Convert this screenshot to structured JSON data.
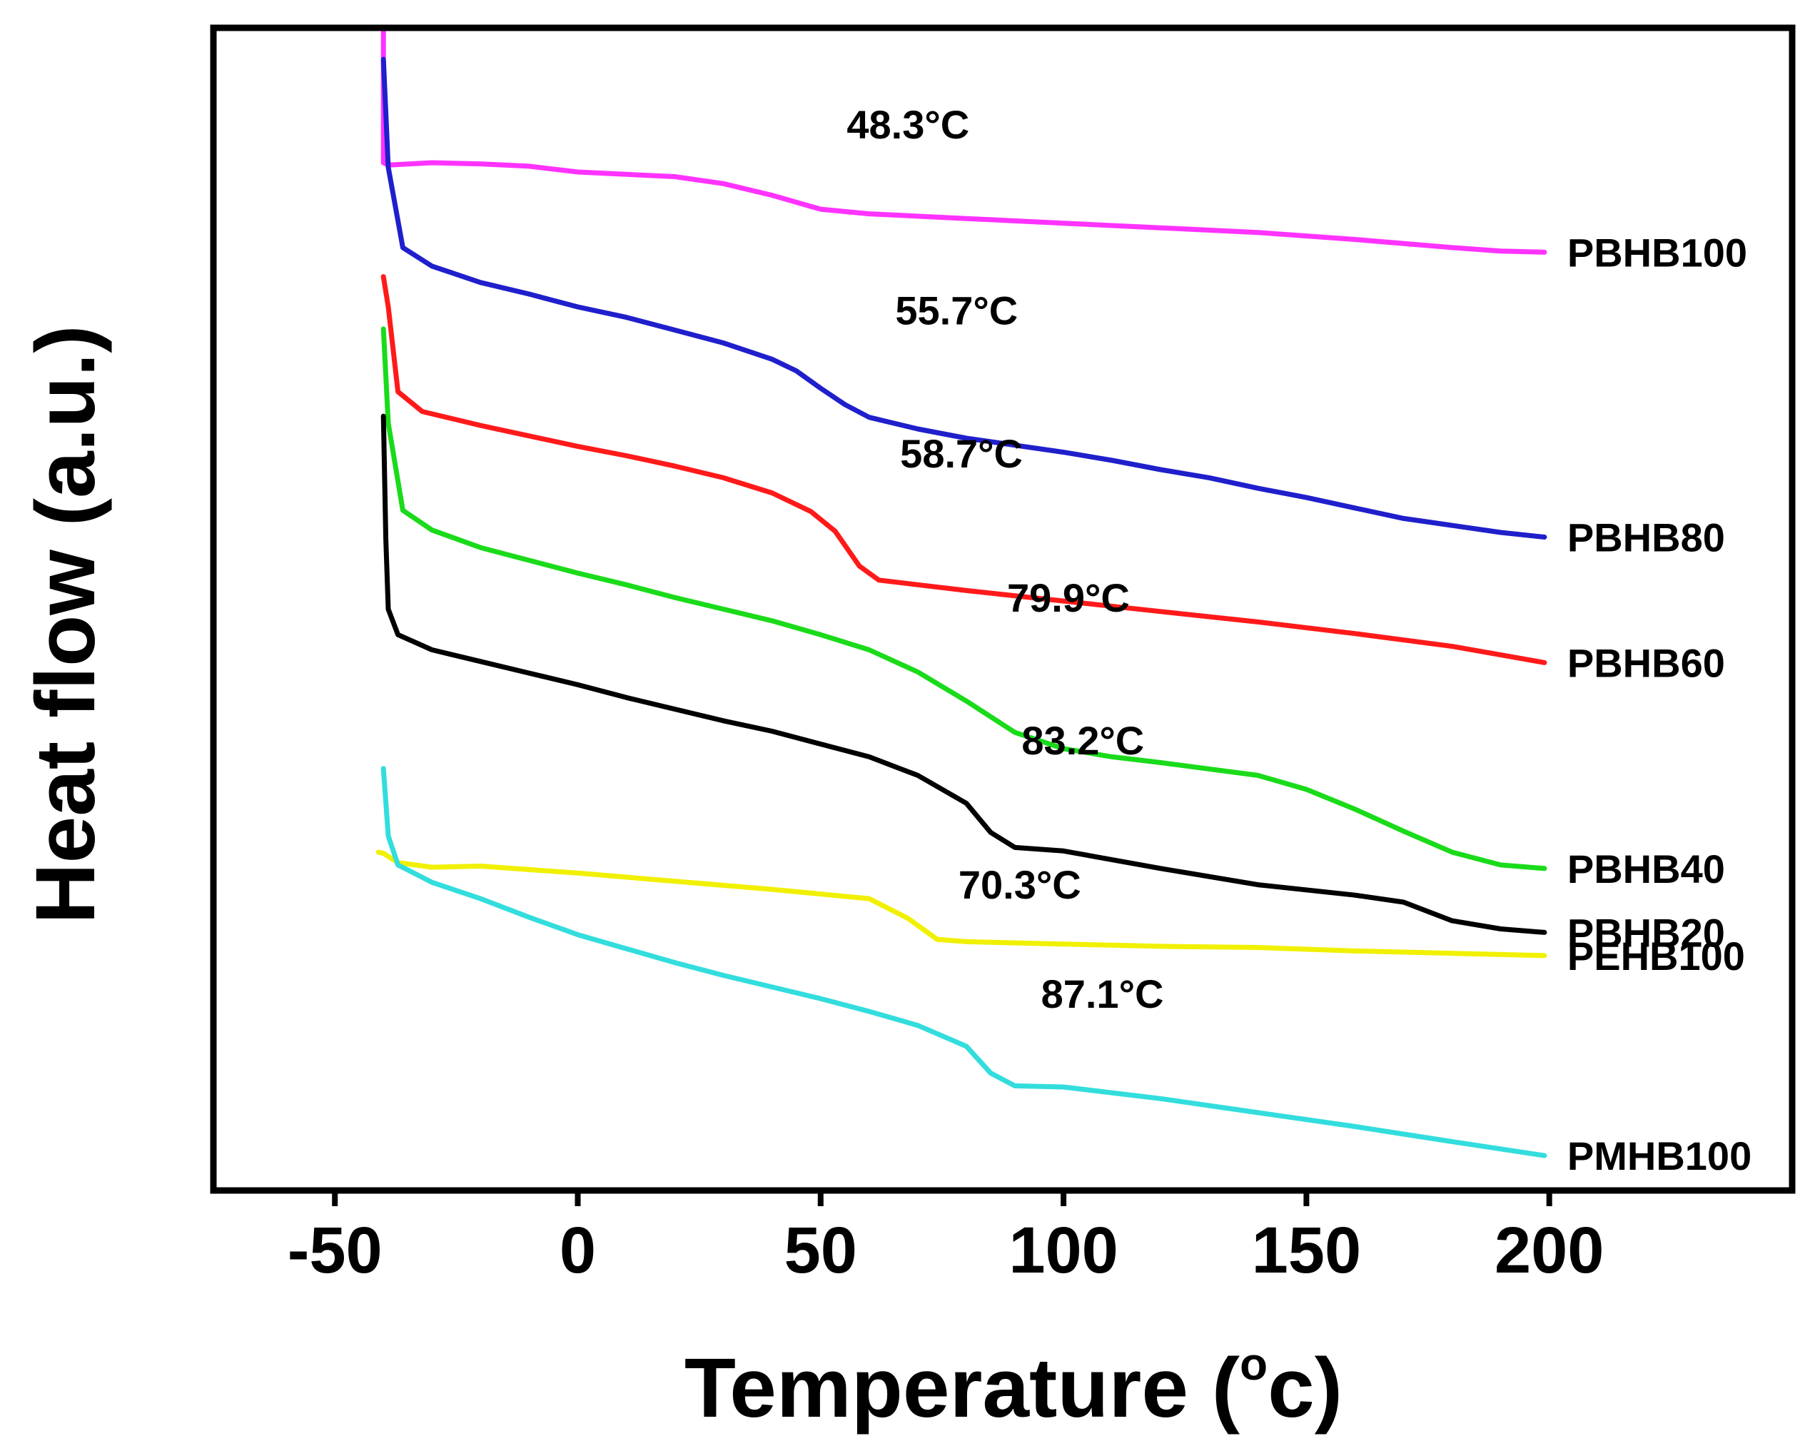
{
  "chart_data": {
    "type": "line",
    "title": "",
    "xlabel": "Temperature (",
    "xlabel_unit_degree": "o",
    "xlabel_unit": "c)",
    "ylabel": "Heat flow (a.u.)",
    "xlim": [
      -75,
      250
    ],
    "ylim": [
      0,
      100
    ],
    "xticks": [
      -50,
      0,
      50,
      100,
      150,
      200
    ],
    "xtick_labels": [
      "-50",
      "0",
      "50",
      "100",
      "150",
      "200"
    ],
    "yticks_shown": false,
    "grid": false,
    "series": [
      {
        "name": "PBHB100",
        "color": "#ff33ff",
        "annotation": "48.3°C",
        "annotation_pos": [
          68,
          90.5
        ],
        "points": [
          [
            -40,
            100
          ],
          [
            -40,
            88.4
          ],
          [
            -39,
            88.2
          ],
          [
            -30,
            88.4
          ],
          [
            -20,
            88.3
          ],
          [
            -10,
            88.1
          ],
          [
            0,
            87.6
          ],
          [
            10,
            87.4
          ],
          [
            20,
            87.2
          ],
          [
            30,
            86.6
          ],
          [
            40,
            85.6
          ],
          [
            50,
            84.4
          ],
          [
            60,
            84.0
          ],
          [
            80,
            83.6
          ],
          [
            100,
            83.2
          ],
          [
            120,
            82.8
          ],
          [
            140,
            82.4
          ],
          [
            160,
            81.8
          ],
          [
            180,
            81.1
          ],
          [
            190,
            80.8
          ],
          [
            199,
            80.7
          ]
        ]
      },
      {
        "name": "PBHB80",
        "color": "#1f1fcc",
        "annotation": "55.7°C",
        "annotation_pos": [
          78,
          74.5
        ],
        "points": [
          [
            -40,
            97.3
          ],
          [
            -39,
            88.0
          ],
          [
            -36,
            81.1
          ],
          [
            -30,
            79.5
          ],
          [
            -20,
            78.1
          ],
          [
            -10,
            77.1
          ],
          [
            0,
            76.0
          ],
          [
            10,
            75.1
          ],
          [
            20,
            74.0
          ],
          [
            30,
            72.9
          ],
          [
            40,
            71.5
          ],
          [
            45,
            70.5
          ],
          [
            50,
            69.0
          ],
          [
            55,
            67.6
          ],
          [
            60,
            66.5
          ],
          [
            70,
            65.5
          ],
          [
            80,
            64.7
          ],
          [
            90,
            64.1
          ],
          [
            100,
            63.5
          ],
          [
            110,
            62.8
          ],
          [
            120,
            62.0
          ],
          [
            130,
            61.3
          ],
          [
            140,
            60.4
          ],
          [
            150,
            59.6
          ],
          [
            160,
            58.7
          ],
          [
            170,
            57.8
          ],
          [
            180,
            57.2
          ],
          [
            190,
            56.6
          ],
          [
            199,
            56.2
          ]
        ]
      },
      {
        "name": "PBHB60",
        "color": "#ff1a1a",
        "annotation": "58.7°C",
        "annotation_pos": [
          79,
          62.2
        ],
        "points": [
          [
            -40,
            78.6
          ],
          [
            -39,
            76.0
          ],
          [
            -37,
            68.7
          ],
          [
            -32,
            67.0
          ],
          [
            -20,
            65.8
          ],
          [
            -10,
            64.9
          ],
          [
            0,
            64.0
          ],
          [
            10,
            63.2
          ],
          [
            20,
            62.3
          ],
          [
            30,
            61.3
          ],
          [
            40,
            60.0
          ],
          [
            48,
            58.4
          ],
          [
            53,
            56.7
          ],
          [
            58,
            53.7
          ],
          [
            62,
            52.5
          ],
          [
            70,
            52.1
          ],
          [
            80,
            51.6
          ],
          [
            100,
            50.7
          ],
          [
            120,
            49.8
          ],
          [
            140,
            48.9
          ],
          [
            160,
            47.9
          ],
          [
            180,
            46.8
          ],
          [
            199,
            45.4
          ]
        ]
      },
      {
        "name": "PBHB40",
        "color": "#1adb1a",
        "annotation": "79.9°C",
        "annotation_pos": [
          101,
          49.8
        ],
        "points": [
          [
            -40,
            74.1
          ],
          [
            -39,
            66.0
          ],
          [
            -36,
            58.5
          ],
          [
            -30,
            56.8
          ],
          [
            -20,
            55.3
          ],
          [
            -10,
            54.2
          ],
          [
            0,
            53.1
          ],
          [
            10,
            52.1
          ],
          [
            20,
            51.0
          ],
          [
            30,
            50.0
          ],
          [
            40,
            49.0
          ],
          [
            50,
            47.8
          ],
          [
            60,
            46.5
          ],
          [
            70,
            44.6
          ],
          [
            80,
            42.1
          ],
          [
            90,
            39.4
          ],
          [
            100,
            38.0
          ],
          [
            110,
            37.3
          ],
          [
            120,
            36.8
          ],
          [
            140,
            35.7
          ],
          [
            150,
            34.5
          ],
          [
            160,
            32.8
          ],
          [
            170,
            30.9
          ],
          [
            180,
            29.1
          ],
          [
            190,
            28.0
          ],
          [
            199,
            27.7
          ]
        ]
      },
      {
        "name": "PBHB20",
        "color": "#000000",
        "annotation": "83.2°C",
        "annotation_pos": [
          104,
          37.5
        ],
        "points": [
          [
            -40,
            66.6
          ],
          [
            -39.5,
            56.0
          ],
          [
            -39,
            50.0
          ],
          [
            -37,
            47.8
          ],
          [
            -30,
            46.5
          ],
          [
            -20,
            45.5
          ],
          [
            -10,
            44.5
          ],
          [
            0,
            43.5
          ],
          [
            10,
            42.4
          ],
          [
            20,
            41.4
          ],
          [
            30,
            40.4
          ],
          [
            40,
            39.5
          ],
          [
            50,
            38.4
          ],
          [
            60,
            37.3
          ],
          [
            70,
            35.7
          ],
          [
            80,
            33.3
          ],
          [
            85,
            30.8
          ],
          [
            90,
            29.5
          ],
          [
            100,
            29.2
          ],
          [
            120,
            27.7
          ],
          [
            140,
            26.3
          ],
          [
            160,
            25.4
          ],
          [
            170,
            24.8
          ],
          [
            180,
            23.2
          ],
          [
            190,
            22.5
          ],
          [
            199,
            22.2
          ]
        ]
      },
      {
        "name": "PEHB100",
        "color": "#f0f000",
        "annotation": "70.3°C",
        "annotation_pos": [
          91,
          25.1
        ],
        "points": [
          [
            -41,
            29.1
          ],
          [
            -40,
            29.0
          ],
          [
            -37,
            28.2
          ],
          [
            -30,
            27.8
          ],
          [
            -20,
            27.9
          ],
          [
            -10,
            27.6
          ],
          [
            0,
            27.3
          ],
          [
            20,
            26.6
          ],
          [
            40,
            25.9
          ],
          [
            60,
            25.1
          ],
          [
            68,
            23.4
          ],
          [
            74,
            21.6
          ],
          [
            80,
            21.4
          ],
          [
            100,
            21.2
          ],
          [
            120,
            21.0
          ],
          [
            140,
            20.9
          ],
          [
            160,
            20.6
          ],
          [
            180,
            20.4
          ],
          [
            199,
            20.2
          ]
        ]
      },
      {
        "name": "PMHB100",
        "color": "#33dddd",
        "annotation": "87.1°C",
        "annotation_pos": [
          108,
          15.7
        ],
        "points": [
          [
            -40,
            36.3
          ],
          [
            -39,
            30.5
          ],
          [
            -37,
            28.0
          ],
          [
            -30,
            26.5
          ],
          [
            -20,
            25.1
          ],
          [
            -10,
            23.5
          ],
          [
            0,
            22.0
          ],
          [
            10,
            20.8
          ],
          [
            20,
            19.6
          ],
          [
            30,
            18.5
          ],
          [
            40,
            17.5
          ],
          [
            50,
            16.5
          ],
          [
            60,
            15.4
          ],
          [
            70,
            14.2
          ],
          [
            80,
            12.4
          ],
          [
            85,
            10.1
          ],
          [
            90,
            9.0
          ],
          [
            100,
            8.9
          ],
          [
            120,
            7.9
          ],
          [
            140,
            6.7
          ],
          [
            160,
            5.5
          ],
          [
            180,
            4.2
          ],
          [
            199,
            3.0
          ]
        ]
      }
    ]
  }
}
